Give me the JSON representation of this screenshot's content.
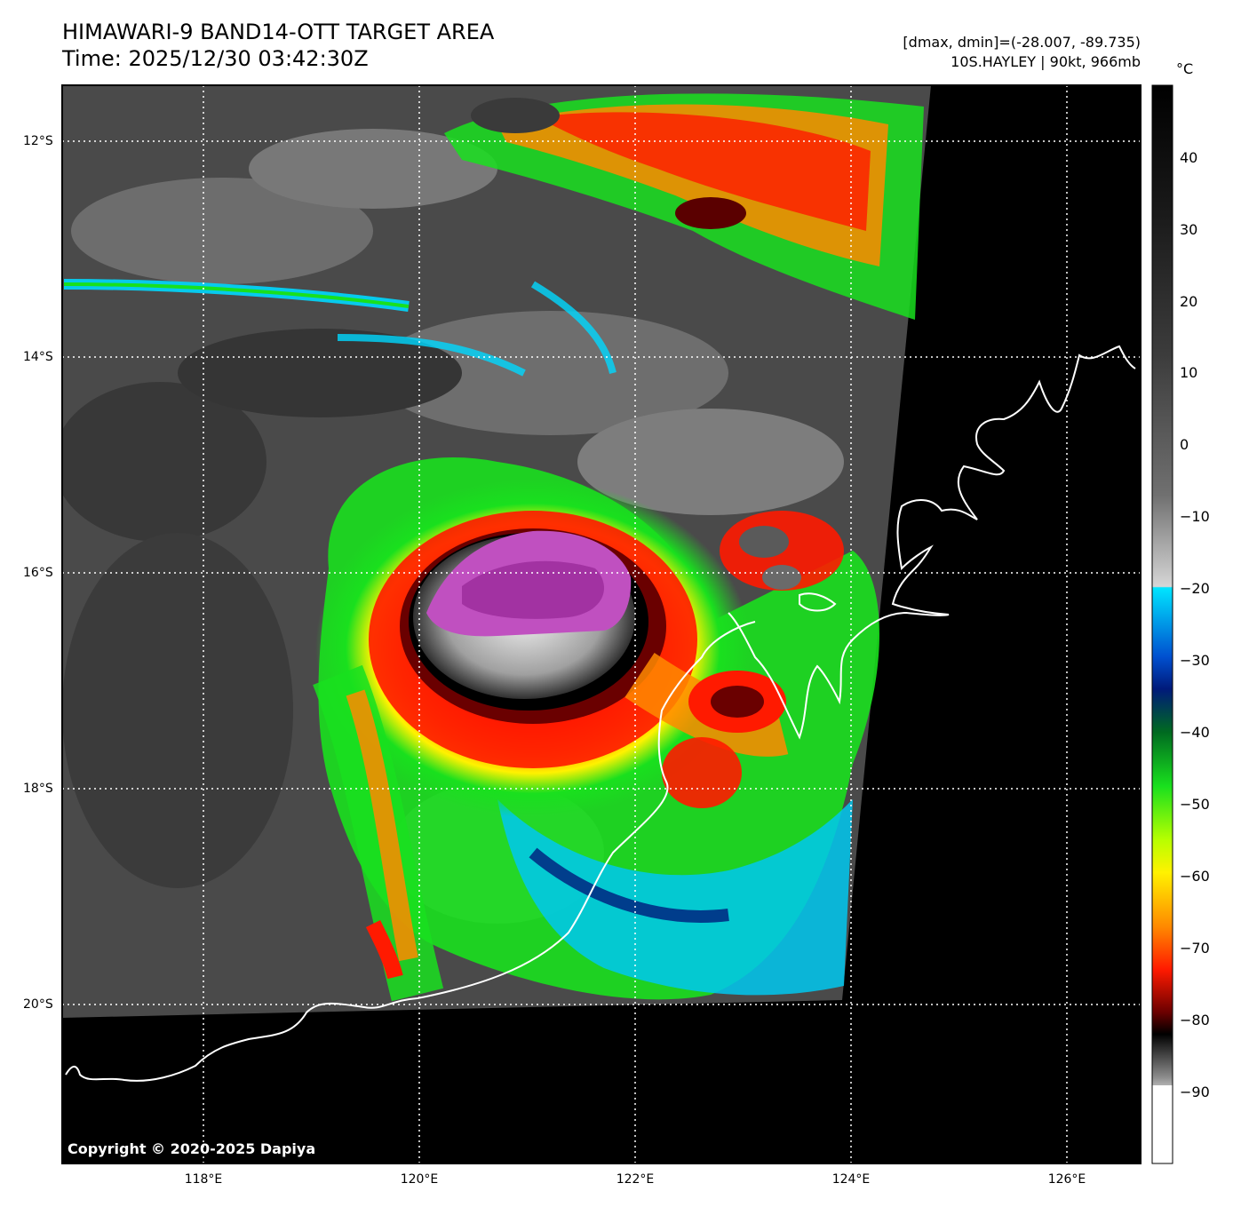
{
  "header": {
    "title_line1": "HIMAWARI-9 BAND14-OTT TARGET AREA",
    "title_line2": "Time: 2025/12/30 03:42:30Z",
    "stats_line": "[dmax, dmin]=(-28.007, -89.735)",
    "storm_line": "10S.HAYLEY | 90kt, 966mb"
  },
  "map": {
    "lat_labels": [
      "12°S",
      "14°S",
      "16°S",
      "18°S",
      "20°S"
    ],
    "lon_labels": [
      "118°E",
      "120°E",
      "122°E",
      "124°E",
      "126°E"
    ],
    "lat_range": [
      -21.5,
      -11.5
    ],
    "lon_range": [
      116.7,
      126.7
    ],
    "gridlines": true,
    "copyright": "Copyright © 2020-2025 Dapiya"
  },
  "colorbar": {
    "unit": "°C",
    "ticks": [
      "40",
      "30",
      "20",
      "10",
      "0",
      "−10",
      "−20",
      "−30",
      "−40",
      "−50",
      "−60",
      "−70",
      "−80",
      "−90"
    ],
    "range": [
      -100,
      50
    ],
    "colors": {
      "warm_top": "#000000",
      "gray_mid": "#9a9a9a",
      "light_gray": "#dcdcdc",
      "cyan": "#00e5ff",
      "blue": "#0050d0",
      "navy": "#001a7a",
      "green": "#19e01e",
      "yellow": "#fff200",
      "orange": "#ff8a00",
      "red": "#ff1a00",
      "dark_red": "#6a0000",
      "magenta": "#e05ac8",
      "purple": "#8a0c8a",
      "white": "#ffffff"
    }
  }
}
